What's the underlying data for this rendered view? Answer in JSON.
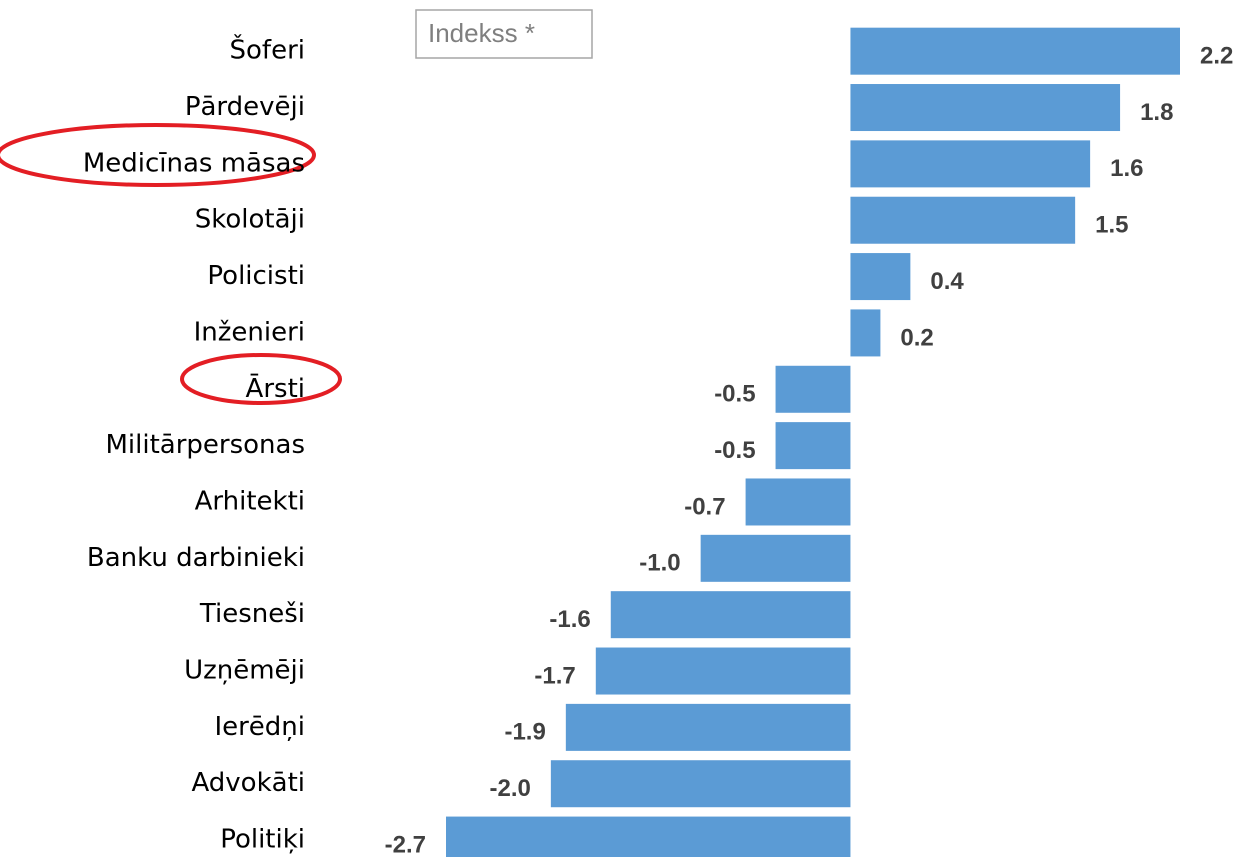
{
  "chart_data": {
    "type": "barh",
    "annotation": "Indekss *",
    "categories": [
      "Šoferi",
      "Pārdevēji",
      "Medicīnas māsas",
      "Skolotāji",
      "Policisti",
      "Inženieri",
      "Ārsti",
      "Militārpersonas",
      "Arhitekti",
      "Banku darbinieki",
      "Tiesneši",
      "Uzņēmēji",
      "Ierēdņi",
      "Advokāti",
      "Politiķi"
    ],
    "values": [
      2.2,
      1.8,
      1.6,
      1.5,
      0.4,
      0.2,
      -0.5,
      -0.5,
      -0.7,
      -1.0,
      -1.6,
      -1.7,
      -1.9,
      -2.0,
      -2.7
    ],
    "value_labels": [
      "2.2",
      "1.8",
      "1.6",
      "1.5",
      "0.4",
      "0.2",
      "-0.5",
      "-0.5",
      "-0.7",
      "-1.0",
      "-1.6",
      "-1.7",
      "-1.9",
      "-2.0",
      "-2.7"
    ],
    "color": "#5b9bd5"
  }
}
